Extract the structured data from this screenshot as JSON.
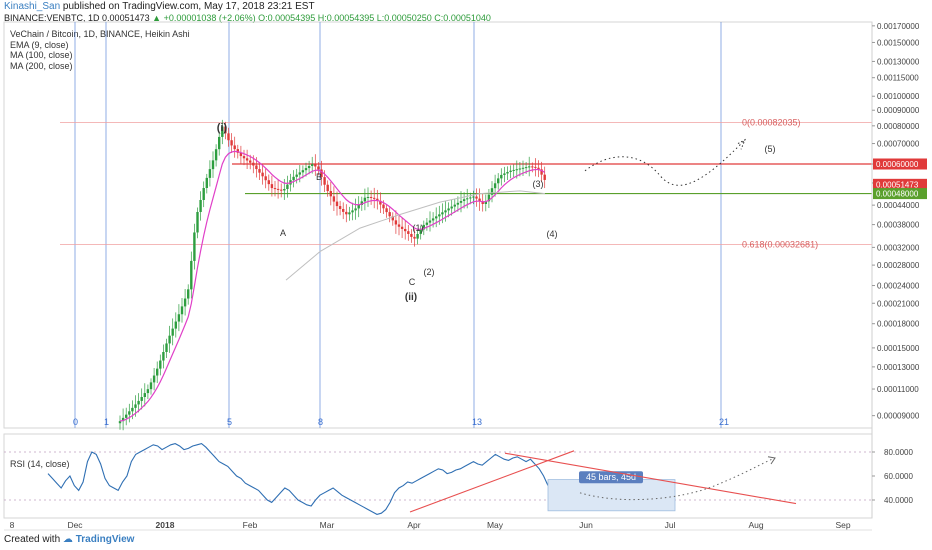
{
  "header": {
    "user": "Kinashi_San",
    "published": " published on TradingView.com, May 17, 2018 23:21 EST",
    "symbol": "BINANCE:VENBTC, 1D",
    "last": "0.00051473",
    "change": "+0.00001038 (+2.06%)",
    "ohlc": "O:0.00054395 H:0.00054395 L:0.00050250 C:0.00051040"
  },
  "legend": {
    "title": "VeChain / Bitcoin, 1D, BINANCE, Heikin Ashi",
    "ema": "EMA (9, close)",
    "ma100": "MA (100, close)",
    "ma200": "MA (200, close)"
  },
  "rsi": {
    "label": "RSI (14, close)"
  },
  "footer": {
    "created": "Created with",
    "brand": "TradingView"
  },
  "chart_data": {
    "type": "candlestick",
    "price_axis": {
      "log_scale": true,
      "ylim": [
        8.2e-05,
        0.00175
      ],
      "ticks": [
        0.0017,
        0.0015,
        0.0013,
        0.00115,
        0.001,
        0.0009,
        0.0008,
        0.0007,
        0.0006,
        0.00052,
        0.00044,
        0.00038,
        0.00032,
        0.00028,
        0.00024,
        0.00021,
        0.00018,
        0.00015,
        0.00013,
        0.00011,
        9e-05
      ],
      "tick_labels": [
        "0.00170000",
        "0.00150000",
        "0.00130000",
        "0.00115000",
        "0.00100000",
        "0.00090000",
        "0.00080000",
        "0.00070000",
        "0.00060000",
        "0.00052000",
        "0.00044000",
        "0.00038000",
        "0.00032000",
        "0.00028000",
        "0.00024000",
        "0.00021000",
        "0.00018000",
        "0.00015000",
        "0.00013000",
        "0.00011000",
        "0.00009000"
      ]
    },
    "price_tags": [
      {
        "value": 0.0006,
        "label": "0.00060000",
        "color": "#e03a3a"
      },
      {
        "value": 0.00051473,
        "label": "0.00051473",
        "color": "#e03a3a"
      },
      {
        "value": 0.00048,
        "label": "0.00048000",
        "color": "#5aa02c"
      }
    ],
    "fib_levels": [
      {
        "value": 0.00082035,
        "label": "0(0.00082035)"
      },
      {
        "value": 0.00032681,
        "label": "0.618(0.00032681)"
      }
    ],
    "time_axis": {
      "ticks": [
        "8",
        "Dec",
        "2018",
        "Feb",
        "Mar",
        "Apr",
        "May",
        "Jun",
        "Jul",
        "Aug",
        "Sep"
      ]
    },
    "fib_time_zones": [
      "0",
      "1",
      "5",
      "8",
      "13",
      "21"
    ],
    "wave_labels": [
      "(i)",
      "B",
      "A",
      "(ii)",
      "C",
      "(1)",
      "(2)",
      "(3)",
      "(4)",
      "(5)"
    ],
    "rsi_axis": {
      "ylim": [
        25,
        95
      ],
      "ticks": [
        80,
        60,
        40
      ],
      "tick_labels": [
        "80.0000",
        "60.0000",
        "40.0000"
      ]
    },
    "rsi_values": [
      62,
      58,
      54,
      50,
      56,
      60,
      52,
      48,
      55,
      72,
      80,
      78,
      70,
      58,
      52,
      50,
      48,
      55,
      60,
      72,
      78,
      80,
      82,
      84,
      86,
      85,
      82,
      84,
      86,
      87,
      85,
      82,
      83,
      85,
      86,
      87,
      84,
      80,
      76,
      72,
      70,
      68,
      64,
      60,
      58,
      54,
      52,
      50,
      48,
      44,
      40,
      38,
      42,
      46,
      50,
      48,
      44,
      40,
      38,
      36,
      35,
      40,
      44,
      46,
      48,
      50,
      47,
      44,
      42,
      40,
      38,
      36,
      34,
      32,
      30,
      28,
      29,
      32,
      38,
      46,
      50,
      52,
      55,
      54,
      56,
      58,
      60,
      62,
      64,
      66,
      65,
      62,
      63,
      65,
      66,
      68,
      70,
      72,
      70,
      69,
      72,
      75,
      78,
      76,
      74,
      73,
      75,
      76,
      74,
      72,
      74,
      70,
      66,
      60,
      52
    ],
    "annotations": {
      "bars_box": "45 bars, 45d"
    },
    "colors": {
      "up": "#2e9e40",
      "down": "#e03a3a",
      "ema": "#e040c8",
      "rsi": "#2f6fb3",
      "fib_time": "#3a6fd0",
      "resistance": "#e03a3a",
      "support": "#5aa02c"
    }
  }
}
